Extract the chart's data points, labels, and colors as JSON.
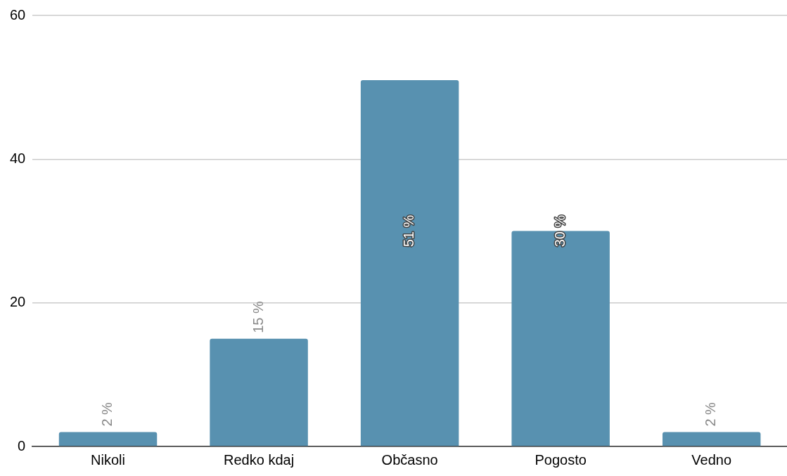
{
  "chart_data": {
    "type": "bar",
    "categories": [
      "Nikoli",
      "Redko kdaj",
      "Občasno",
      "Pogosto",
      "Vedno"
    ],
    "values": [
      2,
      15,
      51,
      30,
      2
    ],
    "color": "#5891b0",
    "value_labels": [
      "2 %",
      "15 %",
      "51 %",
      "30 %",
      "2 %"
    ],
    "ylim": [
      0,
      60
    ],
    "yticks": [
      0,
      20,
      40,
      60
    ],
    "grid": "y",
    "legend": false
  }
}
